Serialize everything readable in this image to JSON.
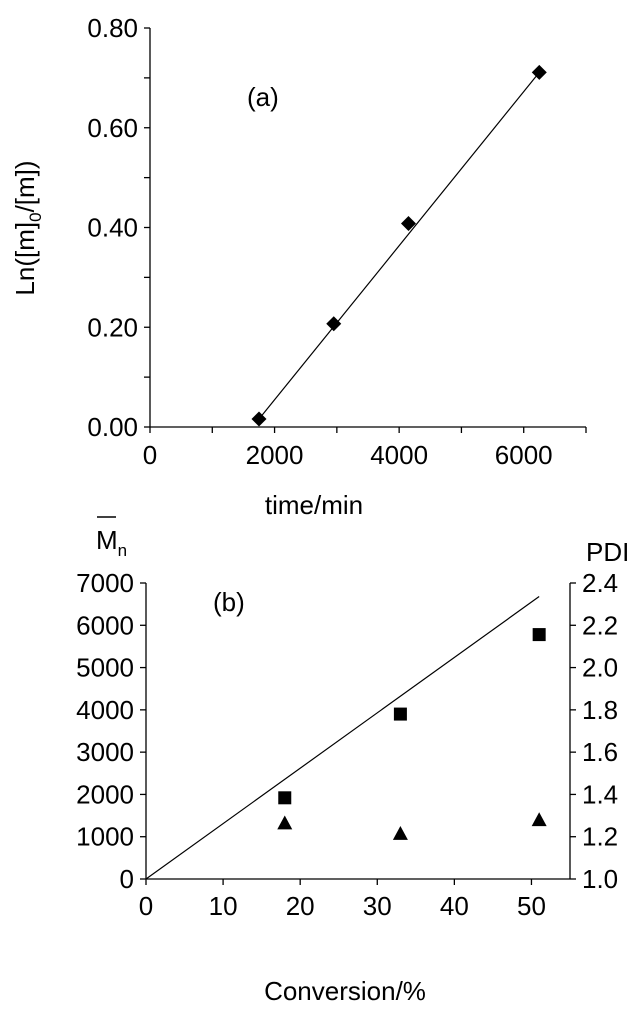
{
  "chart_data": [
    {
      "type": "scatter",
      "panel_label": "(a)",
      "xlabel": "time/min",
      "ylabel_parts": {
        "base": "Ln([m]",
        "sub": "0",
        "rest": "/[m])"
      },
      "xlim": [
        0,
        7000
      ],
      "ylim": [
        0.0,
        0.8
      ],
      "x_ticks": [
        "0",
        "2000",
        "4000",
        "6000"
      ],
      "y_ticks": [
        "0.00",
        "0.20",
        "0.40",
        "0.60",
        "0.80"
      ],
      "series": [
        {
          "marker": "diamond",
          "x": [
            1750,
            2950,
            4150,
            6250
          ],
          "y": [
            0.016,
            0.207,
            0.408,
            0.711
          ]
        }
      ],
      "fit_line": {
        "x": [
          1750,
          6250
        ],
        "y": [
          0.016,
          0.711
        ]
      },
      "grid": false
    },
    {
      "type": "scatter",
      "panel_label": "(b)",
      "xlabel": "Conversion/%",
      "ylabel_left_parts": {
        "base": "M",
        "sub": "n"
      },
      "ylabel_right": "PDI",
      "xlim": [
        0,
        55
      ],
      "ylim_left": [
        0,
        7000
      ],
      "ylim_right": [
        1.0,
        2.4
      ],
      "x_ticks": [
        "0",
        "10",
        "20",
        "30",
        "40",
        "50"
      ],
      "y_left_ticks": [
        "0",
        "1000",
        "2000",
        "3000",
        "4000",
        "5000",
        "6000",
        "7000"
      ],
      "y_right_ticks": [
        "1.0",
        "1.2",
        "1.4",
        "1.6",
        "1.8",
        "2.0",
        "2.2",
        "2.4"
      ],
      "series": [
        {
          "marker": "square",
          "axis": "left",
          "x": [
            18,
            33,
            51
          ],
          "y": [
            1920,
            3900,
            5780
          ]
        },
        {
          "marker": "triangle",
          "axis": "right",
          "x": [
            18,
            33,
            51
          ],
          "y": [
            1.265,
            1.215,
            1.28
          ]
        }
      ],
      "fit_line": {
        "x": [
          0,
          51
        ],
        "y": [
          0,
          6680
        ]
      },
      "grid": false
    }
  ]
}
